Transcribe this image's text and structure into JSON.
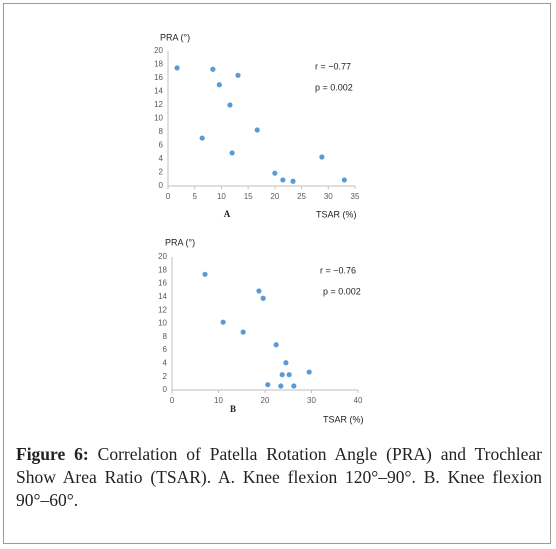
{
  "chart_data": [
    {
      "type": "scatter",
      "y_label": "PRA (°)",
      "x_label": "TSAR (%)",
      "panel_label": "A",
      "annotations": [
        "r = −0.77",
        "p = 0.002"
      ],
      "color": "#5b9bd5",
      "x": [
        1.7,
        8.4,
        13.1,
        9.6,
        11.6,
        16.7,
        6.4,
        12,
        28.8,
        20,
        21.5,
        23.4,
        33
      ],
      "values": [
        17.5,
        17.3,
        16.4,
        15,
        12,
        8.3,
        7.1,
        4.9,
        4.3,
        1.9,
        0.9,
        0.7,
        0.9
      ],
      "xlim": [
        0,
        35
      ],
      "xticks": [
        0,
        5,
        10,
        15,
        20,
        25,
        30,
        35
      ],
      "ylim": [
        0,
        20
      ],
      "yticks": [
        0,
        2,
        4,
        6,
        8,
        10,
        12,
        14,
        16,
        18,
        20
      ],
      "grid": false
    },
    {
      "type": "scatter",
      "y_label": "PRA (°)",
      "x_label": "TSAR (%)",
      "panel_label": "B",
      "annotations": [
        "r = −0.76",
        "p = 0.002"
      ],
      "color": "#5b9bd5",
      "x": [
        7.1,
        18.7,
        19.6,
        11,
        15.3,
        22.4,
        24.5,
        23.7,
        25.2,
        29.5,
        20.6,
        23.4,
        26.2
      ],
      "values": [
        17.4,
        14.9,
        13.8,
        10.2,
        8.7,
        6.8,
        4.1,
        2.3,
        2.3,
        2.7,
        0.8,
        0.6,
        0.6
      ],
      "xlim": [
        0,
        40
      ],
      "xticks": [
        0,
        10,
        20,
        30,
        40
      ],
      "ylim": [
        0,
        20
      ],
      "yticks": [
        0,
        2,
        4,
        6,
        8,
        10,
        12,
        14,
        16,
        18,
        20
      ],
      "grid": false
    }
  ],
  "caption": {
    "label": "Figure 6:",
    "text": "Correlation of Patella Rotation Angle (PRA) and Trochlear Show Area Ratio (TSAR). A. Knee flexion 120°–90°. B. Knee flexion 90°–60°."
  }
}
